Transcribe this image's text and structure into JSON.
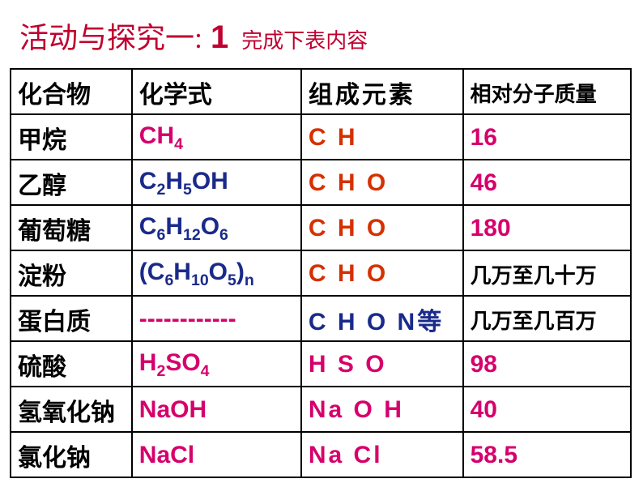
{
  "title": {
    "main": "活动与探究一:",
    "num": "1",
    "sub": "完成下表内容"
  },
  "headers": {
    "c1": "化合物",
    "c2": "化学式",
    "c3": "组成元素",
    "c4": "相对分子质量"
  },
  "rows": [
    {
      "name": "甲烷",
      "formula_html": "CH<sub>4</sub>",
      "formula_color": "#d6006c",
      "elements": "C  H",
      "elem_color": "#d63000",
      "mass": "16",
      "mass_color": "#d6006c"
    },
    {
      "name": "乙醇",
      "formula_html": "C<sub>2</sub>H<sub>5</sub>OH",
      "formula_color": "#1a2a8a",
      "elements": "C  H  O",
      "elem_color": "#d63000",
      "mass": "46",
      "mass_color": "#d6006c"
    },
    {
      "name": "葡萄糖",
      "formula_html": "C<sub>6</sub>H<sub>12</sub>O<sub>6</sub>",
      "formula_color": "#1a2a8a",
      "elements": "C  H  O",
      "elem_color": "#d63000",
      "mass": "180",
      "mass_color": "#d6006c"
    },
    {
      "name": "淀粉",
      "formula_html": "(C<sub>6</sub>H<sub>10</sub>O<sub>5</sub>)<sub>n</sub>",
      "formula_color": "#1a2a8a",
      "elements": "C  H  O",
      "elem_color": "#d63000",
      "mass": "几万至几十万",
      "mass_color": "#000"
    },
    {
      "name": "蛋白质",
      "formula_html": "------------",
      "formula_color": "#d6006c",
      "elements": "C H O N等",
      "elem_color": "#1a2a8a",
      "mass": "几万至几百万",
      "mass_color": "#000"
    },
    {
      "name": "硫酸",
      "formula_html": "H<sub>2</sub>SO<sub>4</sub>",
      "formula_color": "#d6006c",
      "elements": "H   S   O",
      "elem_color": "#d6006c",
      "mass": "98",
      "mass_color": "#d6006c"
    },
    {
      "name": "氢氧化钠",
      "formula_html": "NaOH",
      "formula_color": "#d6006c",
      "elements": "Na  O  H",
      "elem_color": "#d6006c",
      "mass": "40",
      "mass_color": "#d6006c"
    },
    {
      "name": "氯化钠",
      "formula_html": "NaCl",
      "formula_color": "#d6006c",
      "elements": "Na   Cl",
      "elem_color": "#d6006c",
      "mass": "58.5",
      "mass_color": "#d6006c"
    }
  ],
  "style": {
    "title_color": "#c00030",
    "border_color": "#000000",
    "background": "#ffffff"
  }
}
